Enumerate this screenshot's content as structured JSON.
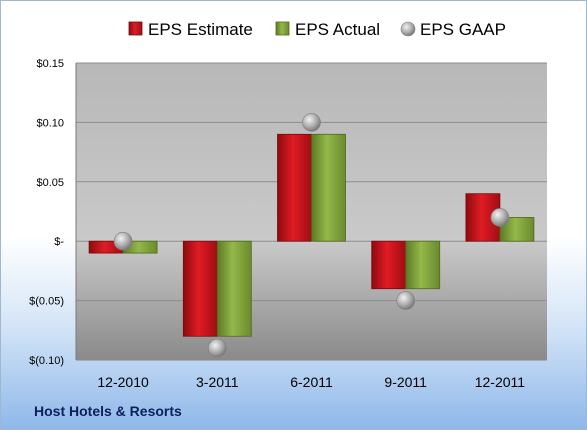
{
  "company": "Host Hotels & Resorts",
  "chart_data": {
    "type": "bar",
    "title": "",
    "xlabel": "",
    "ylabel": "",
    "categories": [
      "12-2010",
      "3-2011",
      "6-2011",
      "9-2011",
      "12-2011"
    ],
    "series": [
      {
        "name": "EPS Estimate",
        "kind": "bar",
        "color": "#c8141c",
        "values": [
          -0.01,
          -0.08,
          0.09,
          -0.04,
          0.04
        ]
      },
      {
        "name": "EPS Actual",
        "kind": "bar",
        "color": "#7fa23a",
        "values": [
          -0.01,
          -0.08,
          0.09,
          -0.04,
          0.02
        ]
      },
      {
        "name": "EPS GAAP",
        "kind": "marker",
        "color": "#b0b0b0",
        "values": [
          0.0,
          -0.09,
          0.1,
          -0.05,
          0.02
        ]
      }
    ],
    "ylim": [
      -0.1,
      0.15
    ],
    "yticks": [
      0.15,
      0.1,
      0.05,
      0.0,
      -0.05,
      -0.1
    ],
    "ytick_labels": [
      "$0.15",
      "$0.10",
      "$0.05",
      "$-",
      "$(0.05)",
      "$(0.10)"
    ],
    "grid": true,
    "legend_position": "top"
  }
}
